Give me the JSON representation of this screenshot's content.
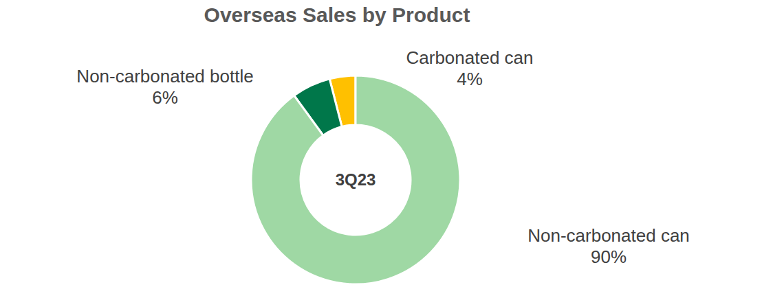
{
  "chart_data": {
    "type": "pie",
    "title": "Overseas Sales by Product",
    "annotations": [
      "3Q23"
    ],
    "categories": [
      "Carbonated can",
      "Non-carbonated bottle",
      "Non-carbonated can"
    ],
    "values": [
      4,
      6,
      90
    ],
    "value_labels": [
      "4%",
      "6%",
      "90%"
    ],
    "colors": [
      "#ffc000",
      "#00774a",
      "#9fd8a4"
    ],
    "data_labels": true
  }
}
